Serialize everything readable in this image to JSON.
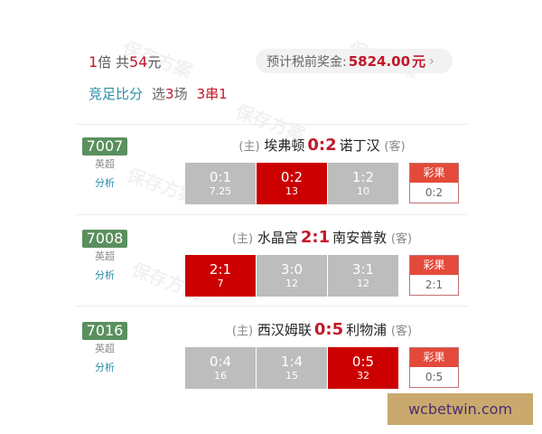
{
  "summary": {
    "multiple_num": "1",
    "multiple_unit": "倍",
    "total_prefix": " 共",
    "total_amount": "54",
    "total_unit": "元"
  },
  "prize": {
    "label": "预计税前奖金:",
    "amount": "5824.00",
    "unit": "元",
    "chevron": "›"
  },
  "play": {
    "type": "竞足比分",
    "select_prefix": "选",
    "select_count": "3",
    "select_unit": "场",
    "combo": "3串1"
  },
  "home_tag": "(主)",
  "away_tag": "(客)",
  "result_label": "彩果",
  "analysis_label": "分析",
  "matches": [
    {
      "id": "7007",
      "league": "英超",
      "home": "埃弗顿",
      "score": "0:2",
      "away": "诺丁汉",
      "options": [
        {
          "score": "0:1",
          "odds": "7.25",
          "selected": false
        },
        {
          "score": "0:2",
          "odds": "13",
          "selected": true
        },
        {
          "score": "1:2",
          "odds": "10",
          "selected": false
        }
      ],
      "result": "0:2"
    },
    {
      "id": "7008",
      "league": "英超",
      "home": "水晶宫",
      "score": "2:1",
      "away": "南安普敦",
      "options": [
        {
          "score": "2:1",
          "odds": "7",
          "selected": true
        },
        {
          "score": "3:0",
          "odds": "12",
          "selected": false
        },
        {
          "score": "3:1",
          "odds": "12",
          "selected": false
        }
      ],
      "result": "2:1"
    },
    {
      "id": "7016",
      "league": "英超",
      "home": "西汉姆联",
      "score": "0:5",
      "away": "利物浦",
      "options": [
        {
          "score": "0:4",
          "odds": "16",
          "selected": false
        },
        {
          "score": "1:4",
          "odds": "15",
          "selected": false
        },
        {
          "score": "0:5",
          "odds": "32",
          "selected": true
        }
      ],
      "result": "0:5"
    }
  ],
  "watermark": "保存方案",
  "brand": "wcbetwin.com",
  "colors": {
    "accent_red": "#c0182a",
    "selected": "#cc0000",
    "unselected": "#bdbdbd",
    "badge": "#5a8f5e",
    "link": "#2a8ea8",
    "brand_bg": "#c9a96e"
  }
}
